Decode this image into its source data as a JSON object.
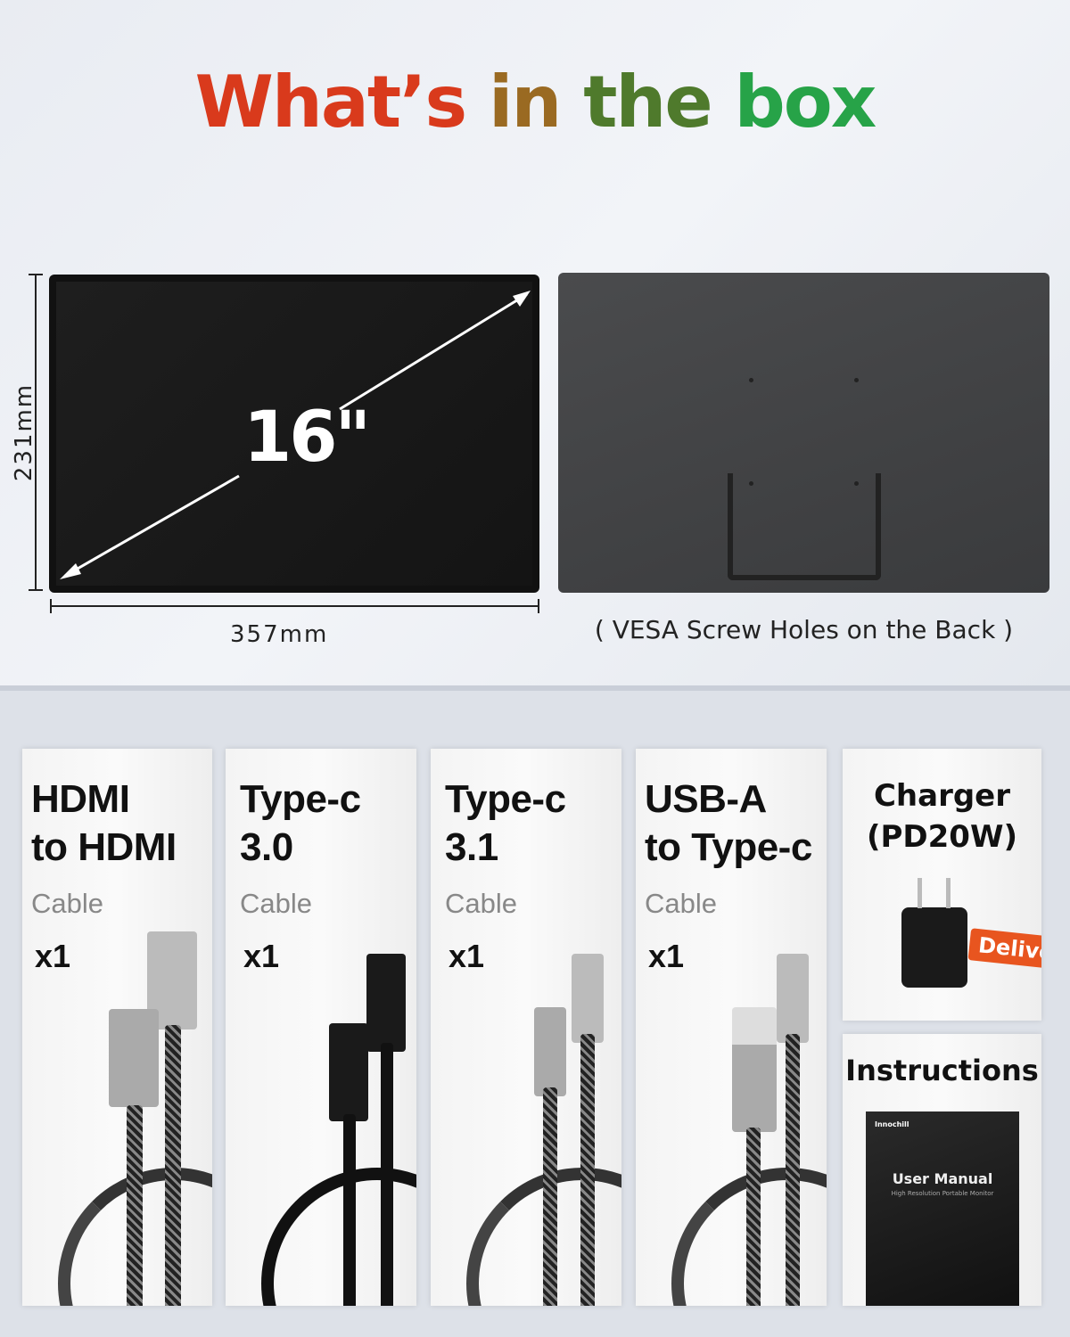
{
  "title": {
    "words": [
      "What’s",
      "in",
      "the",
      "box"
    ],
    "colors": [
      "#d93a1c",
      "#9a6a22",
      "#4f7a2c",
      "#27a348"
    ]
  },
  "monitor": {
    "diagonal": "16\"",
    "height": "231mm",
    "width": "357mm",
    "back_caption": "( VESA Screw Holes on the Back )"
  },
  "items": [
    {
      "title": [
        "HDMI",
        "to HDMI"
      ],
      "sub": "Cable",
      "qty": "x1"
    },
    {
      "title": [
        "Type-c",
        "3.0"
      ],
      "sub": "Cable",
      "qty": "x1"
    },
    {
      "title": [
        "Type-c",
        "3.1"
      ],
      "sub": "Cable",
      "qty": "x1"
    },
    {
      "title": [
        "USB-A",
        "to Type-c"
      ],
      "sub": "Cable",
      "qty": "x1"
    }
  ],
  "charger": {
    "title": [
      "Charger",
      "(PD20W)"
    ],
    "tag": "Delivery",
    "tag_color": "#e8551f"
  },
  "instructions": {
    "title": "Instructions",
    "brand": "Innochill",
    "manual_title": "User Manual",
    "manual_sub": "High Resolution Portable Monitor"
  }
}
